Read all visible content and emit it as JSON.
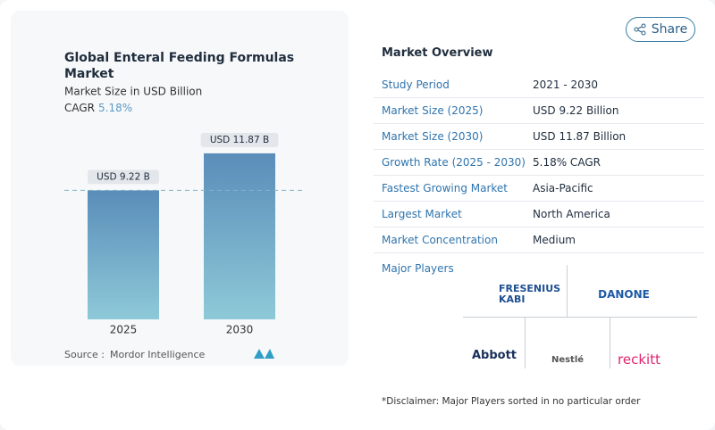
{
  "chart_data": {
    "type": "bar",
    "title": "Global Enteral Feeding Formulas Market",
    "subtitle": "Market Size in USD Billion",
    "cagr_label": "CAGR",
    "cagr_value": "5.18%",
    "categories": [
      "2025",
      "2030"
    ],
    "values": [
      9.22,
      11.87
    ],
    "value_labels": [
      "USD 9.22 B",
      "USD 11.87 B"
    ],
    "ylim": [
      0,
      12.5
    ],
    "source_label": "Source :",
    "source": "Mordor Intelligence"
  },
  "share": "Share",
  "market_overview": {
    "title": "Market Overview",
    "rows": [
      [
        "Study Period",
        "2021 - 2030"
      ],
      [
        "Market Size (2025)",
        "USD 9.22 Billion"
      ],
      [
        "Market Size (2030)",
        "USD 11.87 Billion"
      ],
      [
        "Growth Rate (2025 - 2030)",
        "5.18% CAGR"
      ],
      [
        "Fastest Growing Market",
        "Asia-Pacific"
      ],
      [
        "Largest Market",
        "North America"
      ],
      [
        "Market Concentration",
        "Medium"
      ]
    ],
    "major_players_label": "Major Players",
    "major_players": [
      "FRESENIUS KABI",
      "DANONE",
      "Abbott",
      "Nestlé",
      "reckitt"
    ],
    "disclaimer": "*Disclaimer: Major Players sorted in no particular order"
  }
}
